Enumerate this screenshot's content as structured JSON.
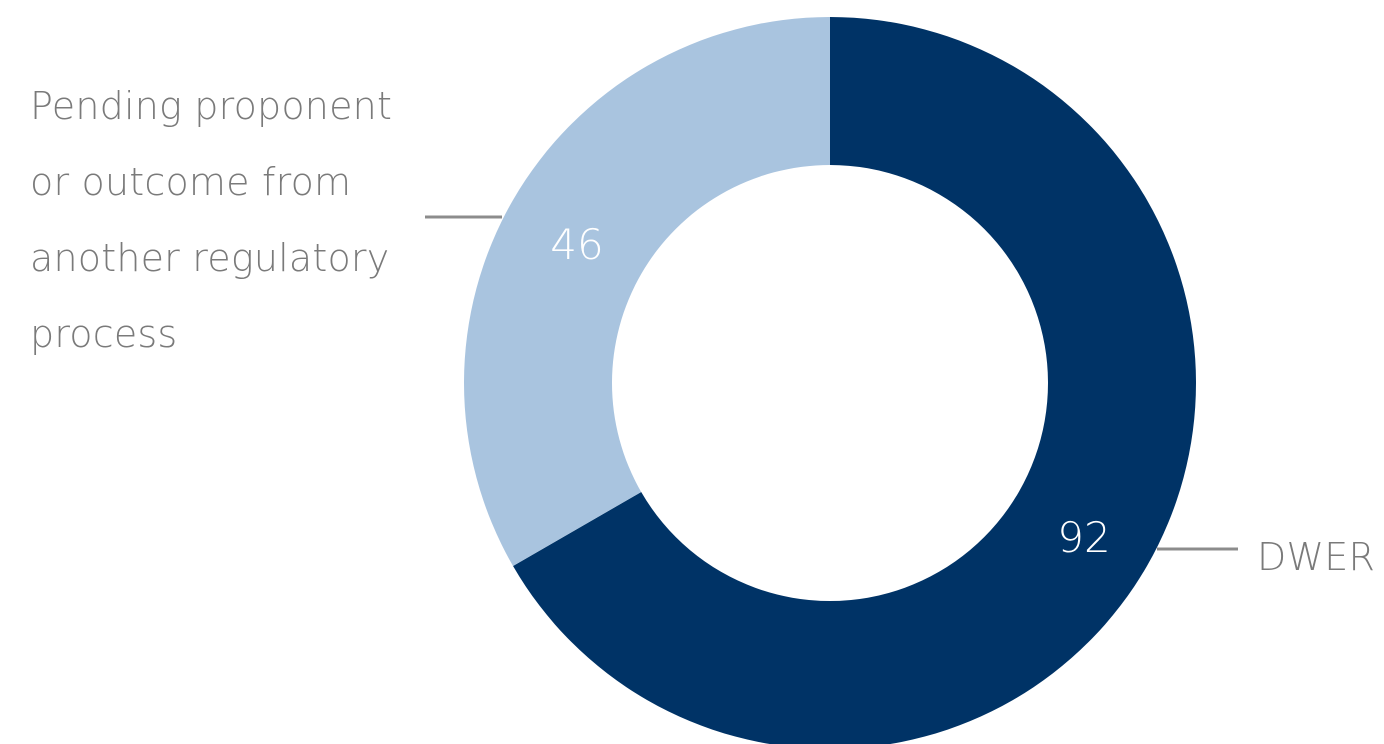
{
  "chart_data": {
    "type": "pie",
    "donut": true,
    "categories": [
      "DWER",
      "Pending proponent or outcome from another regulatory process"
    ],
    "values": [
      92,
      46
    ],
    "value_labels": [
      "92",
      "46"
    ],
    "colors": [
      "#003366",
      "#a9c4df"
    ],
    "leader_line_color": "#8c8c8c",
    "label_color": "#7a7a7a",
    "value_label_color": "#ffffff",
    "start_angle": "12 o'clock",
    "direction": "clockwise",
    "legend": "none"
  },
  "labels": {
    "dwer": "DWER",
    "pending": "Pending proponent\nor outcome from\nanother regulatory\nprocess"
  }
}
